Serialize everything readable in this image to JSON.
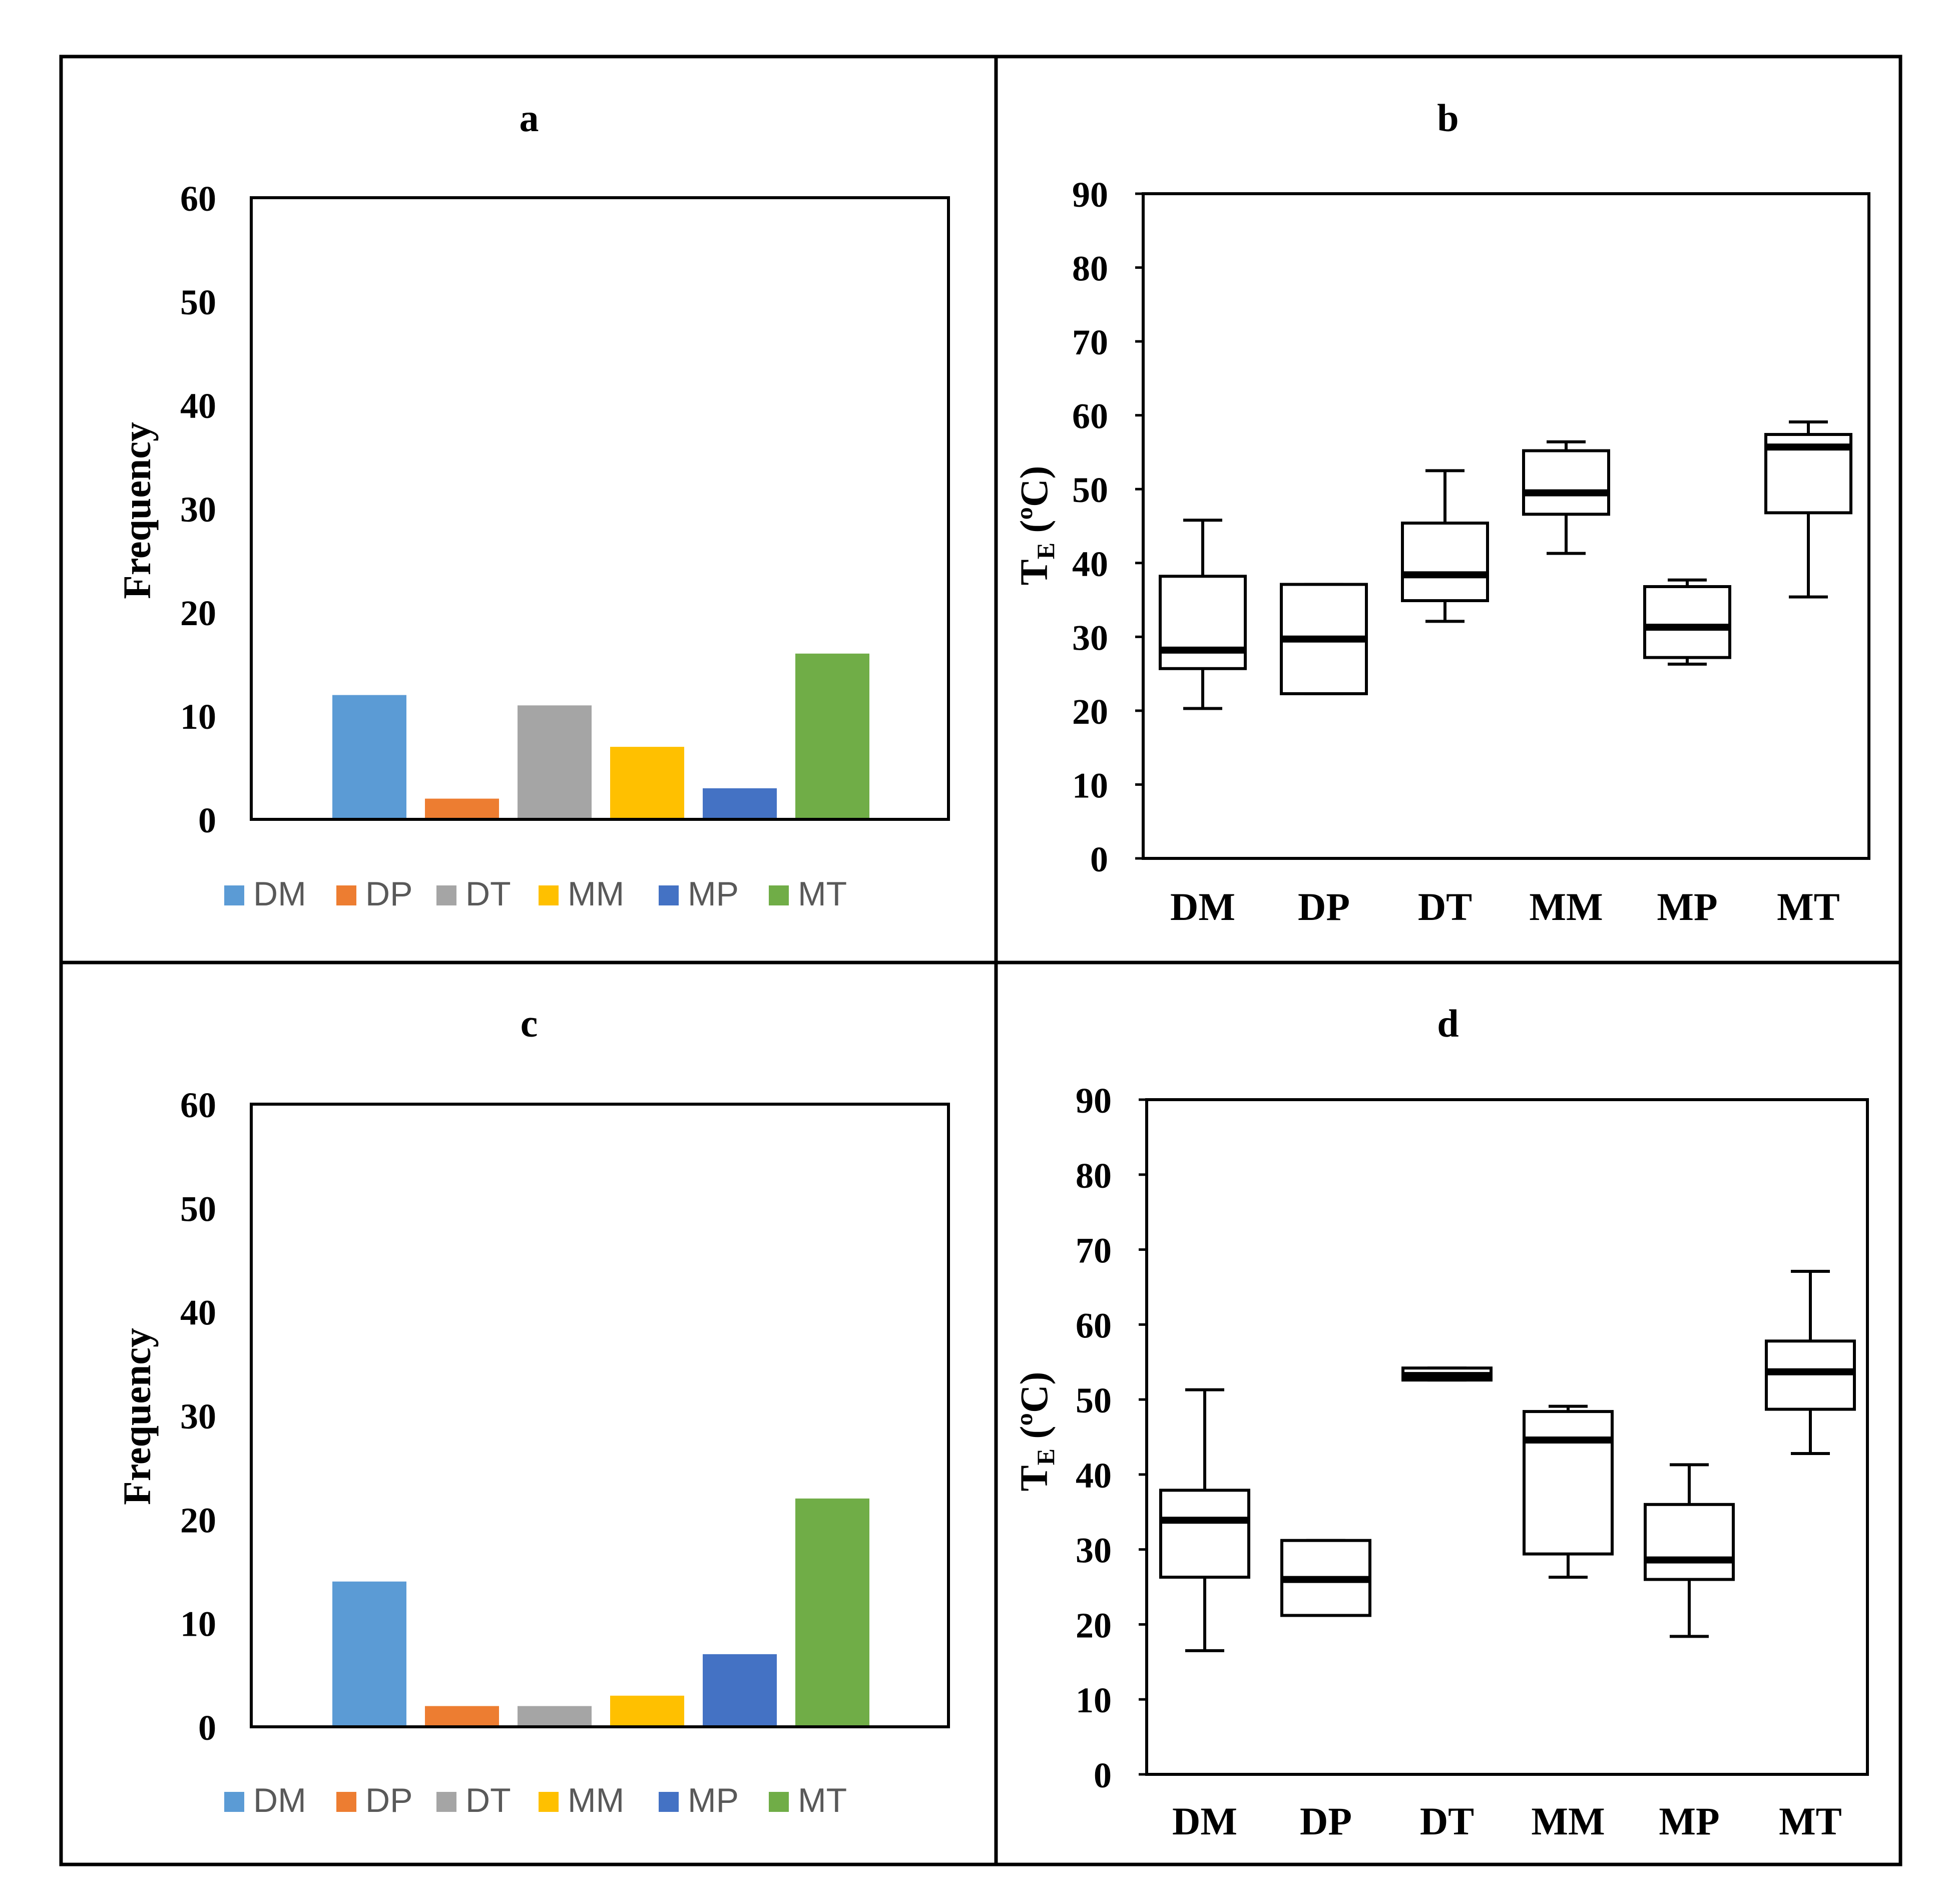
{
  "colors": {
    "DM": "#5b9bd5",
    "DP": "#ed7d31",
    "DT": "#a5a5a5",
    "MM": "#ffc000",
    "MP": "#4472c4",
    "MT": "#70ad47",
    "legend_text": "#595959"
  },
  "chart_data": [
    {
      "id": "a",
      "type": "bar",
      "title": "a",
      "ylabel": "Frequency",
      "xlabel": "",
      "ylim": [
        0,
        60
      ],
      "yticks": [
        "0",
        "10",
        "20",
        "30",
        "40",
        "50",
        "60"
      ],
      "categories": [
        "DM",
        "DP",
        "DT",
        "MM",
        "MP",
        "MT"
      ],
      "values": [
        12,
        2,
        11,
        7,
        3,
        16
      ],
      "legend": [
        "DM",
        "DP",
        "DT",
        "MM",
        "MP",
        "MT"
      ],
      "legend_position": "bottom"
    },
    {
      "id": "b",
      "type": "boxplot",
      "title": "b",
      "ylabel_main": "T",
      "ylabel_sub": "E",
      "ylabel_unit": " (ºC)",
      "ylim": [
        0,
        90
      ],
      "yticks": [
        "0",
        "10",
        "20",
        "30",
        "40",
        "50",
        "60",
        "70",
        "80",
        "90"
      ],
      "categories": [
        "DM",
        "DP",
        "DT",
        "MM",
        "MP",
        "MT"
      ],
      "boxes": [
        {
          "min": 20.3,
          "q1": 25.7,
          "median": 28.2,
          "q3": 38.2,
          "max": 45.8
        },
        {
          "min": 22.3,
          "q1": 22.3,
          "median": 29.7,
          "q3": 37.1,
          "max": 37.1
        },
        {
          "min": 32.1,
          "q1": 34.9,
          "median": 38.4,
          "q3": 45.4,
          "max": 52.5
        },
        {
          "min": 41.3,
          "q1": 46.6,
          "median": 49.5,
          "q3": 55.2,
          "max": 56.4
        },
        {
          "min": 26.3,
          "q1": 27.2,
          "median": 31.3,
          "q3": 36.8,
          "max": 37.7
        },
        {
          "min": 35.4,
          "q1": 46.8,
          "median": 55.7,
          "q3": 57.4,
          "max": 59.1
        }
      ]
    },
    {
      "id": "c",
      "type": "bar",
      "title": "c",
      "ylabel": "Frequency",
      "xlabel": "",
      "ylim": [
        0,
        60
      ],
      "yticks": [
        "0",
        "10",
        "20",
        "30",
        "40",
        "50",
        "60"
      ],
      "categories": [
        "DM",
        "DP",
        "DT",
        "MM",
        "MP",
        "MT"
      ],
      "values": [
        14,
        2,
        2,
        3,
        7,
        22
      ],
      "legend": [
        "DM",
        "DP",
        "DT",
        "MM",
        "MP",
        "MT"
      ],
      "legend_position": "bottom"
    },
    {
      "id": "d",
      "type": "boxplot",
      "title": "d",
      "ylabel_main": "T",
      "ylabel_sub": "E",
      "ylabel_unit": " (ºC)",
      "ylim": [
        0,
        90
      ],
      "yticks": [
        "0",
        "10",
        "20",
        "30",
        "40",
        "50",
        "60",
        "70",
        "80",
        "90"
      ],
      "categories": [
        "DM",
        "DP",
        "DT",
        "MM",
        "MP",
        "MT"
      ],
      "boxes": [
        {
          "min": 16.5,
          "q1": 26.3,
          "median": 33.9,
          "q3": 37.9,
          "max": 51.3
        },
        {
          "min": 21.2,
          "q1": 21.2,
          "median": 26.0,
          "q3": 31.2,
          "max": 31.2
        },
        {
          "min": 52.6,
          "q1": 52.6,
          "median": 53.2,
          "q3": 54.2,
          "max": 54.2
        },
        {
          "min": 26.3,
          "q1": 29.4,
          "median": 44.6,
          "q3": 48.4,
          "max": 49.1
        },
        {
          "min": 18.4,
          "q1": 26.0,
          "median": 28.6,
          "q3": 36.0,
          "max": 41.3
        },
        {
          "min": 42.8,
          "q1": 48.7,
          "median": 53.7,
          "q3": 57.8,
          "max": 67.1
        }
      ]
    }
  ]
}
